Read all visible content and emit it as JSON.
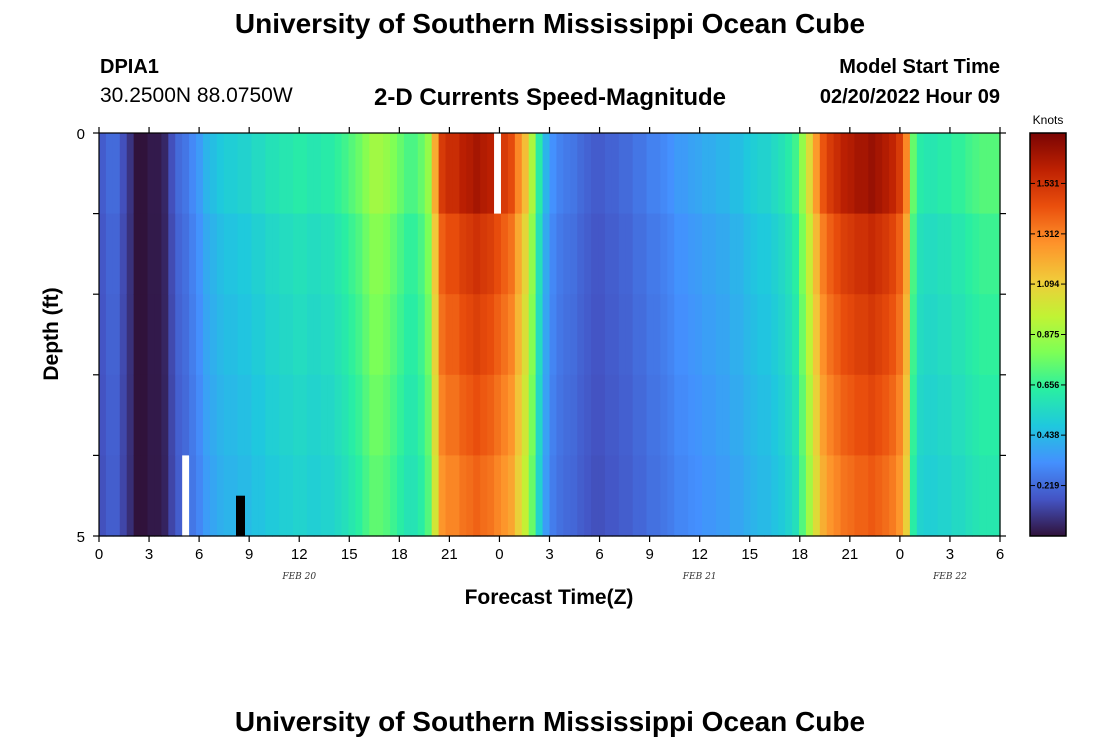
{
  "header": {
    "title": "University of Southern Mississippi Ocean Cube",
    "station_id": "DPIA1",
    "coords": "30.2500N  88.0750W",
    "subtitle": "2-D Currents Speed-Magnitude",
    "model_start_label": "Model Start Time",
    "model_start_value": "02/20/2022 Hour 09"
  },
  "footer": {
    "title": "University of Southern Mississippi Ocean Cube"
  },
  "colors": {
    "stops": [
      "#30123b",
      "#4454c4",
      "#4490fe",
      "#1fc8de",
      "#29efa2",
      "#7dff56",
      "#c1f334",
      "#f1ca3a",
      "#fe922a",
      "#ea4f0d",
      "#be2102",
      "#7a0403"
    ],
    "no_data": "#ffffff",
    "black_mark": "#000000"
  },
  "chart_data": {
    "type": "heatmap",
    "title": "2-D Currents Speed-Magnitude",
    "xlabel": "Forecast Time(Z)",
    "ylabel": "Depth (ft)",
    "x_tick_labels": [
      "0",
      "3",
      "6",
      "9",
      "12",
      "15",
      "18",
      "21",
      "0",
      "3",
      "6",
      "9",
      "12",
      "15",
      "18",
      "21",
      "0",
      "3",
      "6"
    ],
    "y_tick_labels": [
      "0",
      "5"
    ],
    "date_labels": [
      {
        "text": "FEB 20",
        "hour_index": 12
      },
      {
        "text": "FEB 21",
        "hour_index": 36
      },
      {
        "text": "FEB 22",
        "hour_index": 51
      }
    ],
    "hours_range": [
      0,
      54
    ],
    "depth_range": [
      0,
      5
    ],
    "depth_levels": 5,
    "colorbar": {
      "unit": "Knots",
      "range": [
        0.0,
        1.75
      ],
      "tick_values": [
        0.219,
        0.438,
        0.656,
        0.875,
        1.094,
        1.312,
        1.531
      ],
      "tick_labels": [
        "0.219",
        "0.438",
        "0.656",
        "0.875",
        "1.094",
        "1.312",
        "1.531"
      ]
    },
    "column_speeds_knots": [
      0.18,
      0.22,
      0.22,
      0.15,
      0.08,
      0.0,
      0.0,
      0.02,
      0.02,
      0.05,
      0.15,
      0.22,
      0.25,
      0.3,
      0.35,
      0.42,
      0.45,
      0.48,
      0.5,
      0.5,
      0.52,
      0.52,
      0.55,
      0.55,
      0.58,
      0.58,
      0.6,
      0.6,
      0.62,
      0.62,
      0.6,
      0.6,
      0.62,
      0.62,
      0.65,
      0.68,
      0.72,
      0.76,
      0.82,
      0.88,
      0.88,
      0.85,
      0.8,
      0.75,
      0.7,
      0.7,
      0.75,
      0.85,
      1.2,
      1.5,
      1.55,
      1.55,
      1.6,
      1.62,
      1.65,
      1.62,
      1.6,
      1.55,
      1.5,
      1.45,
      1.3,
      1.15,
      0.9,
      0.62,
      0.42,
      0.32,
      0.28,
      0.26,
      0.25,
      0.22,
      0.2,
      0.18,
      0.18,
      0.2,
      0.2,
      0.22,
      0.22,
      0.25,
      0.25,
      0.28,
      0.28,
      0.3,
      0.32,
      0.35,
      0.35,
      0.37,
      0.38,
      0.4,
      0.4,
      0.42,
      0.42,
      0.45,
      0.45,
      0.48,
      0.5,
      0.52,
      0.52,
      0.55,
      0.58,
      0.62,
      0.68,
      0.85,
      1.05,
      1.25,
      1.42,
      1.5,
      1.55,
      1.6,
      1.62,
      1.65,
      1.65,
      1.68,
      1.65,
      1.62,
      1.58,
      1.5,
      1.3,
      0.75,
      0.62,
      0.6,
      0.6,
      0.62,
      0.62,
      0.65,
      0.65,
      0.68,
      0.7,
      0.72,
      0.72,
      0.72
    ],
    "depth_factors": [
      1.0,
      0.93,
      0.9,
      0.87,
      0.84
    ],
    "missing_cells": [
      {
        "col": 57,
        "depth_level": 0
      },
      {
        "col": 12,
        "depth_level": 4
      }
    ]
  }
}
